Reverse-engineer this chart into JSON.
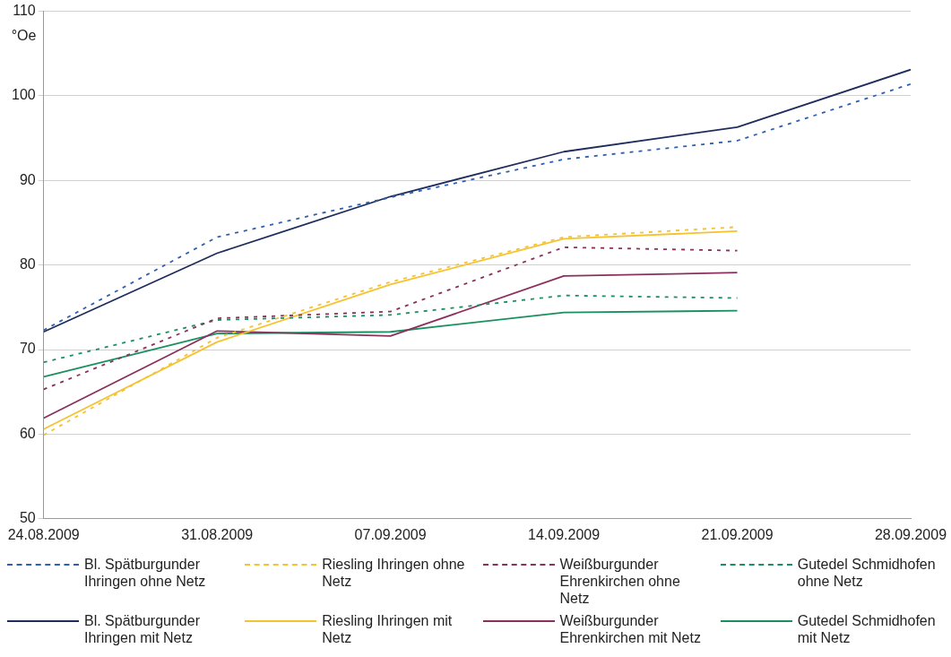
{
  "chart_data": {
    "type": "line",
    "ylabel": "°Oe",
    "x": [
      "2009-08-24",
      "2009-08-31",
      "2009-09-07",
      "2009-09-14",
      "2009-09-21",
      "2009-09-28"
    ],
    "xlim": [
      "2009-08-24",
      "2009-09-28"
    ],
    "xticks": [
      {
        "value": "2009-08-24",
        "label": "24.08.2009"
      },
      {
        "value": "2009-08-31",
        "label": "31.08.2009"
      },
      {
        "value": "2009-09-07",
        "label": "07.09.2009"
      },
      {
        "value": "2009-09-14",
        "label": "14.09.2009"
      },
      {
        "value": "2009-09-21",
        "label": "21.09.2009"
      },
      {
        "value": "2009-09-28",
        "label": "28.09.2009"
      }
    ],
    "ylim": [
      50,
      110
    ],
    "yticks": [
      50,
      60,
      70,
      80,
      90,
      100,
      110
    ],
    "grid": "y",
    "legend": "bottom",
    "marker": "none",
    "series": [
      {
        "name": "Bl. Spätburgunder Ihringen ohne Netz",
        "color": "#2e5fb0",
        "line_style": "dashed",
        "values": [
          72.3,
          83.3,
          88.0,
          92.5,
          94.7,
          101.4
        ]
      },
      {
        "name": "Riesling Ihringen ohne Netz",
        "color": "#f5c232",
        "line_style": "dashed",
        "values": [
          59.9,
          71.4,
          78.0,
          83.3,
          84.5,
          null
        ]
      },
      {
        "name": "Weißburgunder Ehrenkirchen ohne Netz",
        "color": "#8b2f5c",
        "line_style": "dashed",
        "values": [
          65.3,
          73.7,
          74.5,
          82.1,
          81.7,
          null
        ]
      },
      {
        "name": "Gutedel Schmidhofen ohne Netz",
        "color": "#1a9060",
        "line_style": "dashed",
        "values": [
          68.5,
          73.5,
          74.1,
          76.4,
          76.1,
          null
        ]
      },
      {
        "name": "Bl. Spätburgunder Ihringen mit Netz",
        "color": "#1f2d5e",
        "line_style": "solid",
        "values": [
          72.1,
          81.4,
          88.1,
          93.4,
          96.3,
          103.1
        ]
      },
      {
        "name": "Riesling Ihringen mit Netz",
        "color": "#f5c232",
        "line_style": "solid",
        "values": [
          60.6,
          70.9,
          77.7,
          83.1,
          84.0,
          null
        ]
      },
      {
        "name": "Weißburgunder Ehrenkirchen mit Netz",
        "color": "#8b2f5c",
        "line_style": "solid",
        "values": [
          61.9,
          72.2,
          71.6,
          78.7,
          79.1,
          null
        ]
      },
      {
        "name": "Gutedel Schmidhofen mit Netz",
        "color": "#1a9060",
        "line_style": "solid",
        "values": [
          66.8,
          71.9,
          72.1,
          74.4,
          74.6,
          null
        ]
      }
    ]
  }
}
